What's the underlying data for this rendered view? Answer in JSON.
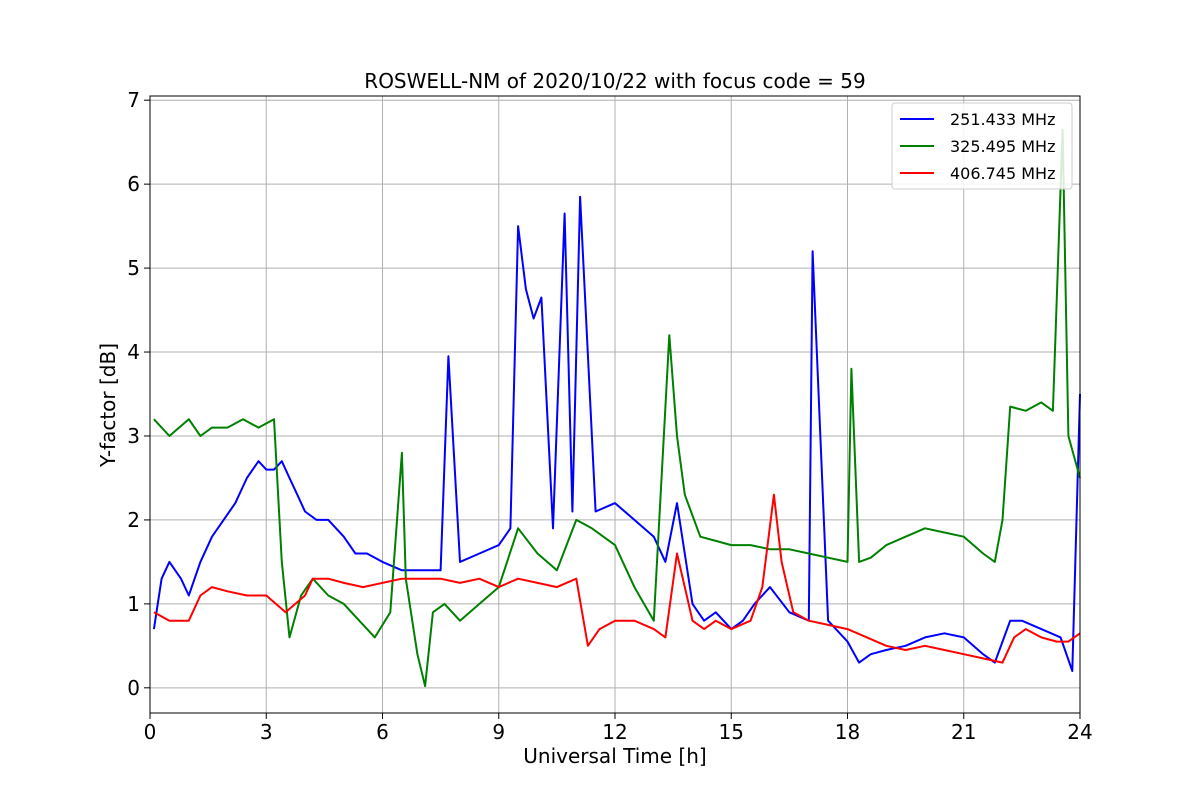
{
  "chart_data": {
    "type": "line",
    "title": "ROSWELL-NM of 2020/10/22 with focus code = 59",
    "xlabel": "Universal Time [h]",
    "ylabel": "Y-factor [dB]",
    "xlim": [
      0,
      24
    ],
    "ylim": [
      -0.3,
      7.05
    ],
    "xticks": [
      0,
      3,
      6,
      9,
      12,
      15,
      18,
      21,
      24
    ],
    "xtick_labels": [
      "0",
      "3",
      "6",
      "9",
      "12",
      "15",
      "18",
      "21",
      "24"
    ],
    "yticks": [
      0,
      1,
      2,
      3,
      4,
      5,
      6,
      7
    ],
    "ytick_labels": [
      "0",
      "1",
      "2",
      "3",
      "4",
      "5",
      "6",
      "7"
    ],
    "grid": true,
    "legend_position": "top-right",
    "series": [
      {
        "name": "251.433 MHz",
        "color": "#0000ff",
        "x": [
          0.1,
          0.3,
          0.5,
          0.8,
          1.0,
          1.3,
          1.6,
          1.9,
          2.2,
          2.5,
          2.8,
          3.0,
          3.2,
          3.4,
          3.6,
          3.8,
          4.0,
          4.3,
          4.6,
          5.0,
          5.3,
          5.6,
          6.0,
          6.5,
          7.0,
          7.5,
          7.7,
          8.0,
          8.5,
          9.0,
          9.3,
          9.5,
          9.7,
          9.9,
          10.1,
          10.4,
          10.7,
          10.9,
          11.1,
          11.5,
          12.0,
          12.5,
          13.0,
          13.3,
          13.6,
          14.0,
          14.3,
          14.6,
          15.0,
          15.3,
          15.6,
          16.0,
          16.5,
          17.0,
          17.1,
          17.5,
          18.0,
          18.3,
          18.6,
          19.0,
          19.5,
          20.0,
          20.5,
          21.0,
          21.5,
          21.8,
          22.2,
          22.5,
          23.0,
          23.5,
          23.8,
          24.0
        ],
        "y": [
          0.7,
          1.3,
          1.5,
          1.3,
          1.1,
          1.5,
          1.8,
          2.0,
          2.2,
          2.5,
          2.7,
          2.6,
          2.6,
          2.7,
          2.5,
          2.3,
          2.1,
          2.0,
          2.0,
          1.8,
          1.6,
          1.6,
          1.5,
          1.4,
          1.4,
          1.4,
          3.95,
          1.5,
          1.6,
          1.7,
          1.9,
          5.5,
          4.75,
          4.4,
          4.65,
          1.9,
          5.65,
          2.1,
          5.85,
          2.1,
          2.2,
          2.0,
          1.8,
          1.5,
          2.2,
          1.0,
          0.8,
          0.9,
          0.7,
          0.8,
          1.0,
          1.2,
          0.9,
          0.8,
          5.2,
          0.8,
          0.55,
          0.3,
          0.4,
          0.45,
          0.5,
          0.6,
          0.65,
          0.6,
          0.4,
          0.3,
          0.8,
          0.8,
          0.7,
          0.6,
          0.2,
          3.5
        ]
      },
      {
        "name": "325.495 MHz",
        "color": "#008000",
        "x": [
          0.1,
          0.5,
          1.0,
          1.3,
          1.6,
          2.0,
          2.4,
          2.8,
          3.2,
          3.4,
          3.6,
          3.9,
          4.2,
          4.6,
          5.0,
          5.4,
          5.8,
          6.2,
          6.5,
          6.6,
          6.9,
          7.1,
          7.3,
          7.6,
          8.0,
          8.5,
          9.0,
          9.5,
          10.0,
          10.5,
          11.0,
          11.4,
          12.0,
          12.5,
          13.0,
          13.4,
          13.6,
          13.8,
          14.2,
          14.6,
          15.0,
          15.5,
          16.0,
          16.5,
          17.0,
          17.5,
          18.0,
          18.1,
          18.3,
          18.6,
          19.0,
          19.5,
          20.0,
          20.5,
          21.0,
          21.5,
          21.8,
          22.0,
          22.2,
          22.6,
          23.0,
          23.3,
          23.55,
          23.7,
          24.0
        ],
        "y": [
          3.2,
          3.0,
          3.2,
          3.0,
          3.1,
          3.1,
          3.2,
          3.1,
          3.2,
          1.5,
          0.6,
          1.1,
          1.3,
          1.1,
          1.0,
          0.8,
          0.6,
          0.9,
          2.8,
          1.3,
          0.4,
          0.02,
          0.9,
          1.0,
          0.8,
          1.0,
          1.2,
          1.9,
          1.6,
          1.4,
          2.0,
          1.9,
          1.7,
          1.2,
          0.8,
          4.2,
          3.0,
          2.3,
          1.8,
          1.75,
          1.7,
          1.7,
          1.65,
          1.65,
          1.6,
          1.55,
          1.5,
          3.8,
          1.5,
          1.55,
          1.7,
          1.8,
          1.9,
          1.85,
          1.8,
          1.6,
          1.5,
          2.0,
          3.35,
          3.3,
          3.4,
          3.3,
          6.65,
          3.0,
          2.5
        ]
      },
      {
        "name": "406.745 MHz",
        "color": "#ff0000",
        "x": [
          0.1,
          0.5,
          1.0,
          1.3,
          1.6,
          2.0,
          2.5,
          3.0,
          3.5,
          4.0,
          4.2,
          4.6,
          5.0,
          5.5,
          6.0,
          6.5,
          7.0,
          7.5,
          8.0,
          8.5,
          9.0,
          9.5,
          10.0,
          10.5,
          11.0,
          11.3,
          11.6,
          12.0,
          12.5,
          13.0,
          13.3,
          13.6,
          13.8,
          14.0,
          14.3,
          14.6,
          15.0,
          15.5,
          15.8,
          16.1,
          16.3,
          16.6,
          17.0,
          17.5,
          18.0,
          18.5,
          19.0,
          19.5,
          20.0,
          20.5,
          21.0,
          21.5,
          22.0,
          22.3,
          22.6,
          23.0,
          23.4,
          23.7,
          24.0
        ],
        "y": [
          0.9,
          0.8,
          0.8,
          1.1,
          1.2,
          1.15,
          1.1,
          1.1,
          0.9,
          1.1,
          1.3,
          1.3,
          1.25,
          1.2,
          1.25,
          1.3,
          1.3,
          1.3,
          1.25,
          1.3,
          1.2,
          1.3,
          1.25,
          1.2,
          1.3,
          0.5,
          0.7,
          0.8,
          0.8,
          0.7,
          0.6,
          1.6,
          1.2,
          0.8,
          0.7,
          0.8,
          0.7,
          0.8,
          1.2,
          2.3,
          1.5,
          0.9,
          0.8,
          0.75,
          0.7,
          0.6,
          0.5,
          0.45,
          0.5,
          0.45,
          0.4,
          0.35,
          0.3,
          0.6,
          0.7,
          0.6,
          0.55,
          0.55,
          0.65
        ]
      }
    ]
  }
}
